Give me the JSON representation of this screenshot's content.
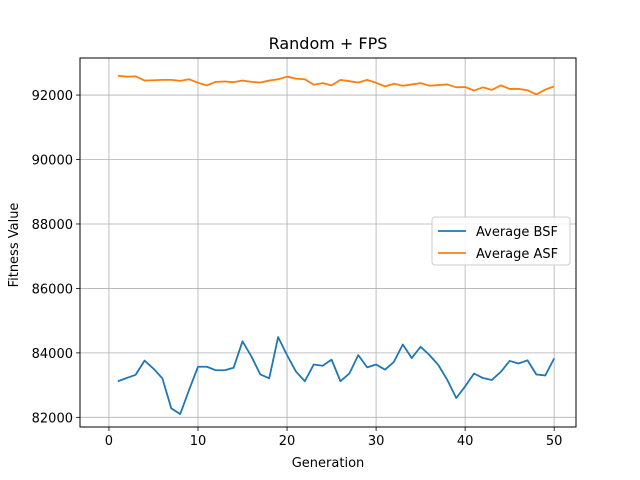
{
  "chart_data": {
    "type": "line",
    "title": "Random + FPS",
    "xlabel": "Generation",
    "ylabel": "Fitness Value",
    "xlim": [
      -3.25,
      52.45
    ],
    "ylim": [
      81700,
      93150
    ],
    "xticks": [
      0,
      10,
      20,
      30,
      40,
      50
    ],
    "yticks": [
      82000,
      84000,
      86000,
      88000,
      90000,
      92000
    ],
    "grid": true,
    "legend_position": "center-right",
    "x": [
      1,
      2,
      3,
      4,
      5,
      6,
      7,
      8,
      9,
      10,
      11,
      12,
      13,
      14,
      15,
      16,
      17,
      18,
      19,
      20,
      21,
      22,
      23,
      24,
      25,
      26,
      27,
      28,
      29,
      30,
      31,
      32,
      33,
      34,
      35,
      36,
      37,
      38,
      39,
      40,
      41,
      42,
      43,
      44,
      45,
      46,
      47,
      48,
      49,
      50
    ],
    "series": [
      {
        "name": "Average BSF",
        "color": "#1f77b4",
        "values": [
          83120,
          83220,
          83320,
          83760,
          83510,
          83210,
          82280,
          82100,
          82850,
          83570,
          83570,
          83460,
          83460,
          83540,
          84360,
          83890,
          83330,
          83210,
          84490,
          83930,
          83420,
          83120,
          83640,
          83600,
          83790,
          83120,
          83360,
          83930,
          83550,
          83640,
          83480,
          83720,
          84260,
          83840,
          84190,
          83930,
          83620,
          83160,
          82600,
          82960,
          83360,
          83220,
          83160,
          83410,
          83750,
          83670,
          83770,
          83330,
          83300,
          83830
        ]
      },
      {
        "name": "Average ASF",
        "color": "#ff7f0e",
        "values": [
          92600,
          92570,
          92580,
          92450,
          92460,
          92470,
          92470,
          92440,
          92490,
          92380,
          92300,
          92410,
          92420,
          92400,
          92450,
          92410,
          92390,
          92450,
          92490,
          92570,
          92510,
          92490,
          92320,
          92370,
          92300,
          92470,
          92430,
          92390,
          92470,
          92380,
          92270,
          92350,
          92290,
          92330,
          92370,
          92290,
          92310,
          92330,
          92240,
          92250,
          92140,
          92240,
          92160,
          92300,
          92190,
          92190,
          92150,
          92020,
          92170,
          92270
        ]
      }
    ]
  }
}
